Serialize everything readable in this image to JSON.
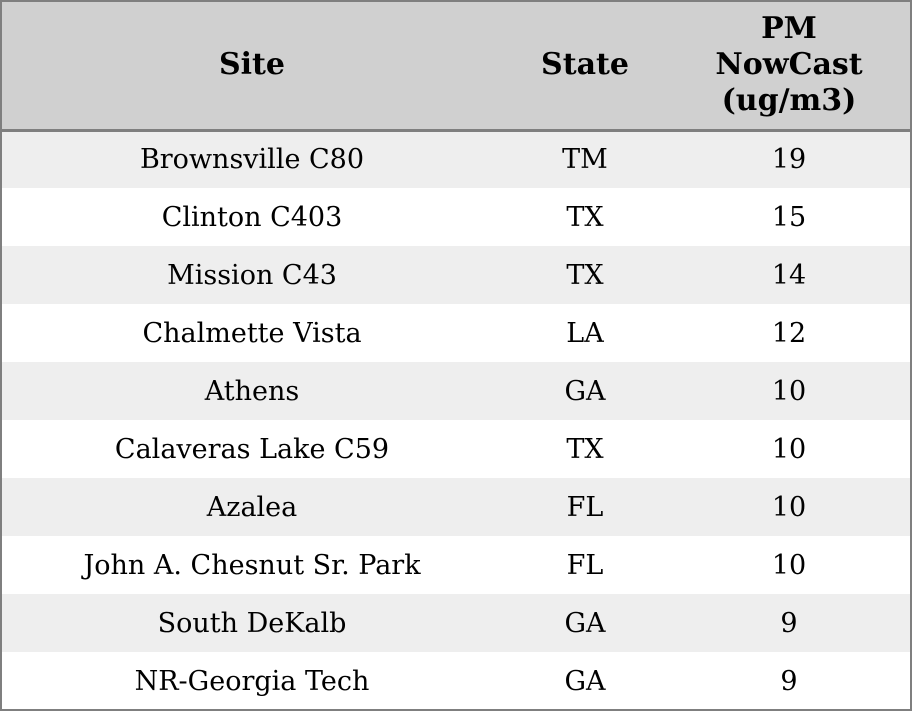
{
  "header": {
    "site": "Site",
    "state": "State",
    "pm": "PM NowCast (ug/m3)"
  },
  "rows": [
    {
      "site": "Brownsville C80",
      "state": "TM",
      "pm": "19"
    },
    {
      "site": "Clinton C403",
      "state": "TX",
      "pm": "15"
    },
    {
      "site": "Mission C43",
      "state": "TX",
      "pm": "14"
    },
    {
      "site": "Chalmette Vista",
      "state": "LA",
      "pm": "12"
    },
    {
      "site": "Athens",
      "state": "GA",
      "pm": "10"
    },
    {
      "site": "Calaveras Lake C59",
      "state": "TX",
      "pm": "10"
    },
    {
      "site": "Azalea",
      "state": "FL",
      "pm": "10"
    },
    {
      "site": "John A. Chesnut Sr. Park",
      "state": "FL",
      "pm": "10"
    },
    {
      "site": "South DeKalb",
      "state": "GA",
      "pm": "9"
    },
    {
      "site": "NR-Georgia Tech",
      "state": "GA",
      "pm": "9"
    }
  ],
  "colors": {
    "header_bg": "#d0d0d0",
    "row_alt_bg": "#eeeeee",
    "row_bg": "#ffffff",
    "border": "#7f7f7f",
    "text": "#000000"
  },
  "chart_data": {
    "type": "table",
    "title": "PM NowCast readings by site",
    "columns": [
      "Site",
      "State",
      "PM NowCast (ug/m3)"
    ],
    "rows": [
      [
        "Brownsville C80",
        "TM",
        19
      ],
      [
        "Clinton C403",
        "TX",
        15
      ],
      [
        "Mission C43",
        "TX",
        14
      ],
      [
        "Chalmette Vista",
        "LA",
        12
      ],
      [
        "Athens",
        "GA",
        10
      ],
      [
        "Calaveras Lake C59",
        "TX",
        10
      ],
      [
        "Azalea",
        "FL",
        10
      ],
      [
        "John A. Chesnut Sr. Park",
        "FL",
        10
      ],
      [
        "South DeKalb",
        "GA",
        9
      ],
      [
        "NR-Georgia Tech",
        "GA",
        9
      ]
    ],
    "layout_hints": {
      "striped_rows": true,
      "header_background": "#d0d0d0",
      "alternate_row_background": "#eeeeee",
      "all_cells_centered": true
    }
  }
}
